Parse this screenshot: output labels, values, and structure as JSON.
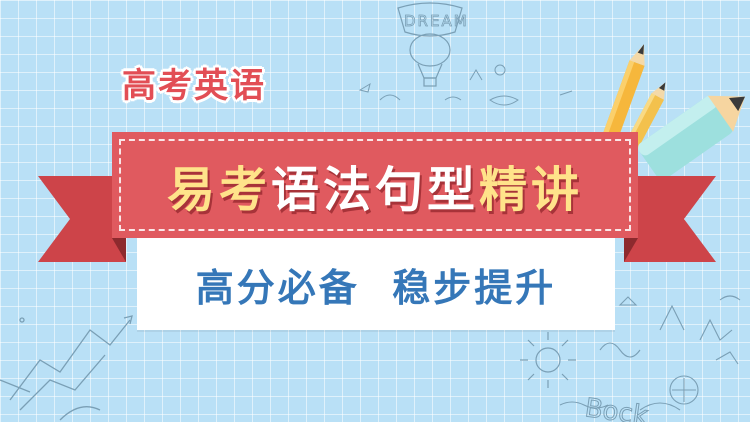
{
  "banner": {
    "subject_label": "高考英语",
    "title_part1": "易考",
    "title_part2": "语法句型",
    "title_part3": "精讲",
    "tagline": "高分必备  稳步提升"
  },
  "doodles": {
    "dream_word": "DREAM",
    "bock_word": "Bock"
  },
  "colors": {
    "background": "#b9e0f6",
    "ribbon_red": "#e05a5f",
    "ribbon_dark": "#b8393f",
    "title_yellow": "#ffe38a",
    "tagline_blue": "#3577b8",
    "subject_red": "#e24e55"
  },
  "icons": [
    "hot-air-balloon-icon",
    "pencil-icon",
    "rocket-icon",
    "sun-icon",
    "trend-chart-icon"
  ]
}
